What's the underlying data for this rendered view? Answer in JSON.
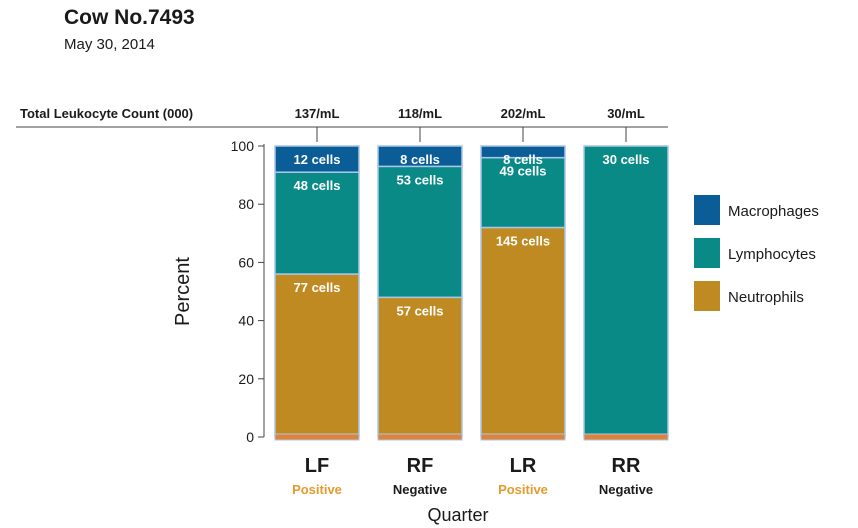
{
  "header": {
    "title": "Cow No.7493",
    "date": "May 30, 2014"
  },
  "chart_data": {
    "type": "bar",
    "stacked": true,
    "orientation": "vertical",
    "ylabel": "Percent",
    "xlabel": "Quarter",
    "ylim": [
      0,
      100
    ],
    "yticks": [
      0,
      20,
      40,
      60,
      80,
      100
    ],
    "categories": [
      "LF",
      "RF",
      "LR",
      "RR"
    ],
    "status": [
      "Positive",
      "Negative",
      "Positive",
      "Negative"
    ],
    "total_row_label": "Total Leukocyte Count (000)",
    "totals": [
      "137/mL",
      "118/mL",
      "202/mL",
      "30/mL"
    ],
    "series": [
      {
        "name": "Neutrophils",
        "values": [
          56,
          48,
          72,
          0
        ],
        "labels": [
          "77 cells",
          "57 cells",
          "145 cells",
          ""
        ]
      },
      {
        "name": "Lymphocytes",
        "values": [
          35,
          45,
          24,
          100
        ],
        "labels": [
          "48 cells",
          "53 cells",
          "49 cells",
          "30 cells"
        ]
      },
      {
        "name": "Macrophages",
        "values": [
          9,
          7,
          4,
          0
        ],
        "labels": [
          "12 cells",
          "8 cells",
          "8 cells",
          ""
        ]
      }
    ],
    "legend": [
      "Macrophages",
      "Lymphocytes",
      "Neutrophils"
    ],
    "legend_position": "right"
  },
  "colors": {
    "Neutrophils": "#c08a22",
    "Lymphocytes": "#0a8a87",
    "Macrophages": "#0b5d98",
    "bar_outline": "#a9c6e8",
    "positive": "#e69a2e",
    "negative": "#1a1a1a",
    "baseline_strip": "#e0833a"
  }
}
